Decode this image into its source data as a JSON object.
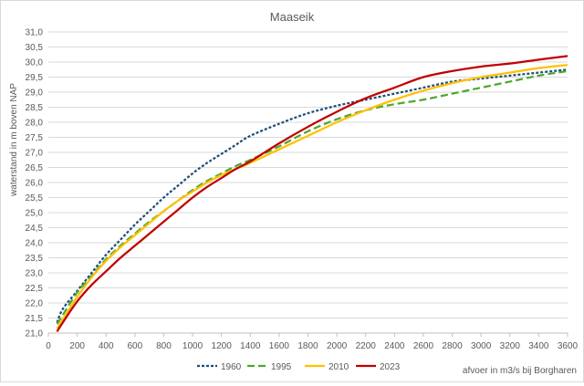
{
  "chart_data": {
    "type": "line",
    "title": "Maaseik",
    "xlabel": "afvoer in m3/s bij Borgharen",
    "ylabel": "waterstand in m boven NAP",
    "xlim": [
      0,
      3600
    ],
    "ylim": [
      21.0,
      31.0
    ],
    "x_ticks": [
      "0",
      "200",
      "400",
      "600",
      "800",
      "1000",
      "1200",
      "1400",
      "1600",
      "1800",
      "2000",
      "2200",
      "2400",
      "2600",
      "2800",
      "3000",
      "3200",
      "3400",
      "3600"
    ],
    "y_ticks": [
      "21,0",
      "21,5",
      "22,0",
      "22,5",
      "23,0",
      "23,5",
      "24,0",
      "24,5",
      "25,0",
      "25,5",
      "26,0",
      "26,5",
      "27,0",
      "27,5",
      "28,0",
      "28,5",
      "29,0",
      "29,5",
      "30,0",
      "30,5",
      "31,0"
    ],
    "grid": "horizontal",
    "legend_position": "bottom",
    "series": [
      {
        "name": "1960",
        "color": "#1f4e79",
        "dash": "dotted",
        "x": [
          60,
          100,
          200,
          300,
          400,
          500,
          600,
          700,
          800,
          900,
          1000,
          1100,
          1200,
          1300,
          1400,
          1600,
          1800,
          2000,
          2200,
          2400,
          2600,
          2800,
          3000,
          3200,
          3400,
          3600
        ],
        "y": [
          21.35,
          21.8,
          22.4,
          23.0,
          23.6,
          24.1,
          24.6,
          25.05,
          25.5,
          25.9,
          26.3,
          26.65,
          26.95,
          27.25,
          27.55,
          27.95,
          28.3,
          28.55,
          28.75,
          28.95,
          29.15,
          29.35,
          29.45,
          29.55,
          29.65,
          29.75
        ]
      },
      {
        "name": "1995",
        "color": "#4ea72e",
        "dash": "dashed",
        "x": [
          60,
          100,
          200,
          300,
          400,
          500,
          600,
          700,
          800,
          900,
          1000,
          1100,
          1200,
          1300,
          1400,
          1600,
          1800,
          2000,
          2200,
          2400,
          2600,
          2800,
          3000,
          3200,
          3400,
          3600
        ],
        "y": [
          21.3,
          21.6,
          22.35,
          22.9,
          23.45,
          23.9,
          24.3,
          24.7,
          25.05,
          25.4,
          25.75,
          26.05,
          26.3,
          26.55,
          26.75,
          27.2,
          27.7,
          28.1,
          28.4,
          28.6,
          28.75,
          28.95,
          29.15,
          29.35,
          29.55,
          29.7
        ]
      },
      {
        "name": "2010",
        "color": "#ffc000",
        "dash": "solid",
        "x": [
          60,
          100,
          200,
          300,
          400,
          500,
          600,
          700,
          800,
          900,
          1000,
          1100,
          1200,
          1300,
          1400,
          1600,
          1800,
          2000,
          2200,
          2400,
          2600,
          2800,
          3000,
          3200,
          3400,
          3600
        ],
        "y": [
          21.15,
          21.45,
          22.2,
          22.85,
          23.4,
          23.85,
          24.25,
          24.65,
          25.05,
          25.4,
          25.7,
          26.0,
          26.25,
          26.45,
          26.65,
          27.1,
          27.55,
          28.0,
          28.4,
          28.75,
          29.05,
          29.3,
          29.5,
          29.65,
          29.8,
          29.9
        ]
      },
      {
        "name": "2023",
        "color": "#c00000",
        "dash": "solid",
        "x": [
          60,
          100,
          200,
          300,
          400,
          500,
          600,
          700,
          800,
          900,
          1000,
          1100,
          1200,
          1300,
          1400,
          1600,
          1800,
          2000,
          2200,
          2400,
          2600,
          2800,
          3000,
          3200,
          3400,
          3600
        ],
        "y": [
          21.05,
          21.35,
          22.05,
          22.6,
          23.05,
          23.5,
          23.9,
          24.3,
          24.7,
          25.1,
          25.5,
          25.85,
          26.15,
          26.45,
          26.7,
          27.3,
          27.85,
          28.35,
          28.8,
          29.15,
          29.5,
          29.7,
          29.85,
          29.95,
          30.08,
          30.2
        ]
      }
    ]
  }
}
